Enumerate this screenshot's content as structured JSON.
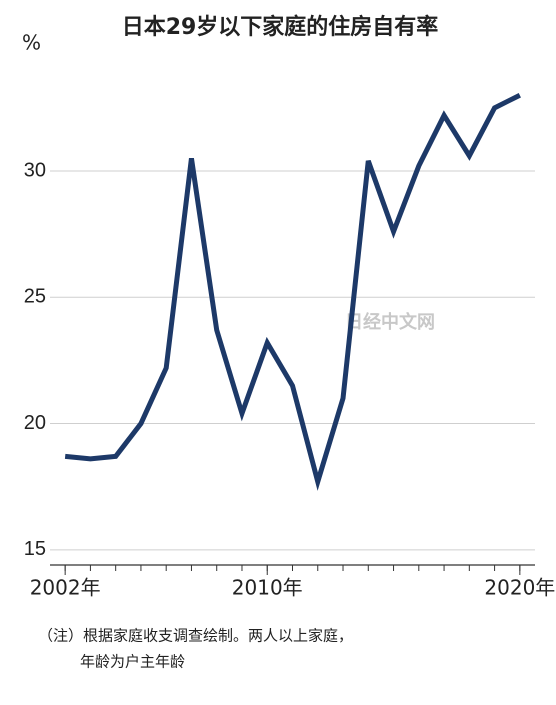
{
  "chart_data": {
    "type": "line",
    "title": "日本29岁以下家庭的住房自有率",
    "y_label": "%",
    "note": [
      "（注）根据家庭收支调查绘制。两人以上家庭，",
      "年龄为户主年龄"
    ],
    "watermark": "日经中文网",
    "x": [
      2002,
      2003,
      2004,
      2005,
      2006,
      2007,
      2008,
      2009,
      2010,
      2011,
      2012,
      2013,
      2014,
      2015,
      2016,
      2017,
      2018,
      2019,
      2020
    ],
    "series": [
      {
        "name": "住房自有率",
        "color": "#1d3968",
        "values": [
          18.7,
          18.6,
          18.7,
          20.0,
          22.2,
          30.5,
          23.7,
          20.4,
          23.2,
          21.5,
          17.7,
          21.0,
          30.4,
          27.6,
          30.2,
          32.2,
          30.6,
          32.5,
          33.0
        ]
      }
    ],
    "xlim": [
      2001.4,
      2020.6
    ],
    "xticks": [
      {
        "value": 2002,
        "label": "2002年"
      },
      {
        "value": 2010,
        "label": "2010年"
      },
      {
        "value": 2020,
        "label": "2020年"
      }
    ],
    "ylim": [
      14.4,
      33.8
    ],
    "yticks": [
      15,
      20,
      25,
      30
    ],
    "grid": true
  }
}
